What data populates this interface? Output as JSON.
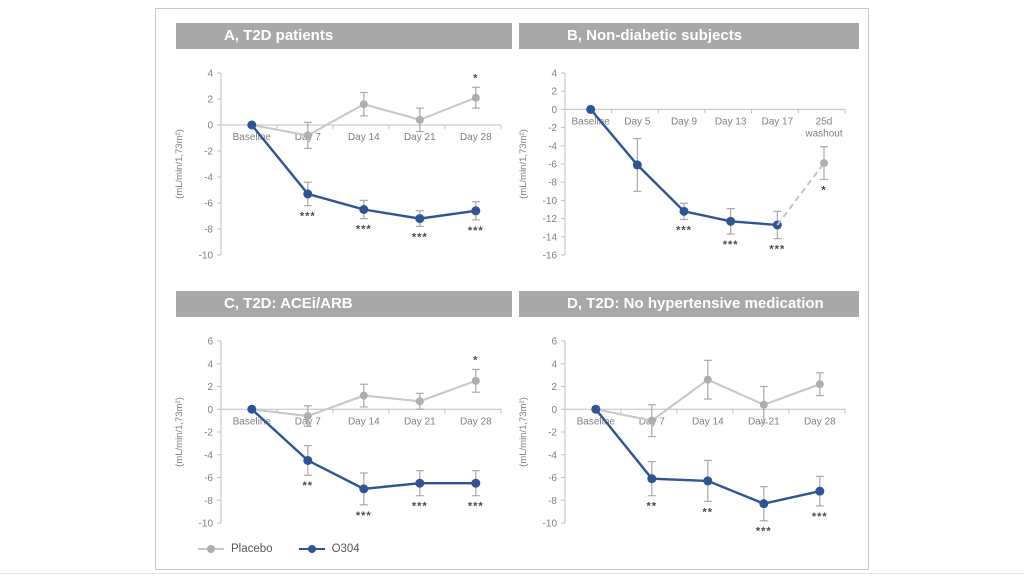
{
  "figure": {
    "colors": {
      "placebo_line": "#c8c8c8",
      "placebo_marker": "#aeaeae",
      "o304_line": "#2f5496",
      "o304_marker": "#2f5496",
      "error_bar": "#a9a9a9",
      "axis": "#bfbfbf",
      "tick_text": "#808080",
      "sig_text": "#4a4a4a",
      "title_band_bg": "#a8a8a8",
      "title_text": "#ffffff",
      "washout_dash": "#c4c4c4"
    }
  },
  "legend": {
    "items": [
      {
        "label": "Placebo",
        "key": "placebo"
      },
      {
        "label": "O304",
        "key": "o304"
      }
    ]
  },
  "chart_data": [
    {
      "type": "line",
      "panel": "A",
      "title": "A, T2D patients",
      "ylabel": "(mL/min/1,73m²)",
      "categories": [
        "Baseline",
        "Day 7",
        "Day 14",
        "Day 21",
        "Day 28"
      ],
      "ylim": [
        -10,
        4
      ],
      "ytick_step": 2,
      "series": [
        {
          "name": "Placebo",
          "key": "placebo",
          "values": [
            0,
            -0.8,
            1.6,
            0.4,
            2.1
          ],
          "errors": [
            0,
            1.0,
            0.9,
            0.9,
            0.8
          ],
          "sig": [
            "",
            "",
            "",
            "",
            "*"
          ],
          "sig_position": "above"
        },
        {
          "name": "O304",
          "key": "o304",
          "values": [
            0,
            -5.3,
            -6.5,
            -7.2,
            -6.6
          ],
          "errors": [
            0,
            0.9,
            0.7,
            0.6,
            0.7
          ],
          "sig": [
            "",
            "***",
            "***",
            "***",
            "***"
          ],
          "sig_position": "below"
        }
      ]
    },
    {
      "type": "line",
      "panel": "B",
      "title": "B, Non-diabetic subjects",
      "ylabel": "(mL/min/1,73m²)",
      "categories": [
        "Baseline",
        "Day 5",
        "Day 9",
        "Day 13",
        "Day 17",
        "25d\nwashout"
      ],
      "ylim": [
        -16,
        4
      ],
      "ytick_step": 2,
      "series": [
        {
          "name": "O304",
          "key": "o304",
          "values": [
            0,
            -6.1,
            -11.2,
            -12.3,
            -12.7
          ],
          "errors": [
            0,
            2.9,
            0.9,
            1.4,
            1.5
          ],
          "sig": [
            "",
            "",
            "***",
            "***",
            "***"
          ],
          "sig_position": "below"
        }
      ],
      "washout": {
        "category_index": 5,
        "value": -5.9,
        "error": 1.8,
        "sig": "*"
      }
    },
    {
      "type": "line",
      "panel": "C",
      "title": "C, T2D: ACEi/ARB",
      "ylabel": "(mL/min/1,73m²)",
      "categories": [
        "Baseline",
        "Day 7",
        "Day 14",
        "Day 21",
        "Day 28"
      ],
      "ylim": [
        -10,
        6
      ],
      "ytick_step": 2,
      "series": [
        {
          "name": "Placebo",
          "key": "placebo",
          "values": [
            0,
            -0.6,
            1.2,
            0.7,
            2.5
          ],
          "errors": [
            0,
            0.9,
            1.0,
            0.7,
            1.0
          ],
          "sig": [
            "",
            "",
            "",
            "",
            "*"
          ],
          "sig_position": "above"
        },
        {
          "name": "O304",
          "key": "o304",
          "values": [
            0,
            -4.5,
            -7.0,
            -6.5,
            -6.5
          ],
          "errors": [
            0,
            1.3,
            1.4,
            1.1,
            1.1
          ],
          "sig": [
            "",
            "**",
            "***",
            "***",
            "***"
          ],
          "sig_position": "below"
        }
      ]
    },
    {
      "type": "line",
      "panel": "D",
      "title": "D, T2D: No hypertensive medication",
      "ylabel": "(mL/min/1,73m²)",
      "categories": [
        "Baseline",
        "Day 7",
        "Day 14",
        "Day 21",
        "Day 28"
      ],
      "ylim": [
        -10,
        6
      ],
      "ytick_step": 2,
      "series": [
        {
          "name": "Placebo",
          "key": "placebo",
          "values": [
            0,
            -1.0,
            2.6,
            0.4,
            2.2
          ],
          "errors": [
            0,
            1.4,
            1.7,
            1.6,
            1.0
          ],
          "sig": [
            "",
            "",
            "",
            "",
            ""
          ],
          "sig_position": "above"
        },
        {
          "name": "O304",
          "key": "o304",
          "values": [
            0,
            -6.1,
            -6.3,
            -8.3,
            -7.2
          ],
          "errors": [
            0,
            1.5,
            1.8,
            1.5,
            1.3
          ],
          "sig": [
            "",
            "**",
            "**",
            "***",
            "***"
          ],
          "sig_position": "below"
        }
      ]
    }
  ]
}
